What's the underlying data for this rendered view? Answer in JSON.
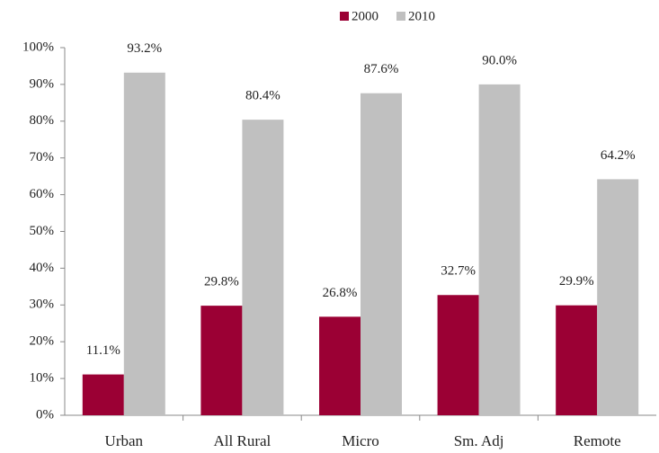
{
  "chart_data": {
    "type": "bar",
    "categories": [
      "Urban",
      "All Rural",
      "Micro",
      "Sm. Adj",
      "Remote"
    ],
    "series": [
      {
        "name": "2000",
        "color": "#9b0034",
        "values": [
          11.1,
          29.8,
          26.8,
          32.7,
          29.9
        ],
        "value_labels": [
          "11.1%",
          "29.8%",
          "26.8%",
          "32.7%",
          "29.9%"
        ]
      },
      {
        "name": "2010",
        "color": "#c0c0c0",
        "values": [
          93.2,
          80.4,
          87.6,
          90.0,
          64.2
        ],
        "value_labels": [
          "93.2%",
          "80.4%",
          "87.6%",
          "90.0%",
          "64.2%"
        ]
      }
    ],
    "ylim": [
      0,
      100
    ],
    "yticks": [
      {
        "value": 0,
        "label": "0%"
      },
      {
        "value": 10,
        "label": "10%"
      },
      {
        "value": 20,
        "label": "20%"
      },
      {
        "value": 30,
        "label": "30%"
      },
      {
        "value": 40,
        "label": "40%"
      },
      {
        "value": 50,
        "label": "50%"
      },
      {
        "value": 60,
        "label": "60%"
      },
      {
        "value": 70,
        "label": "70%"
      },
      {
        "value": 80,
        "label": "80%"
      },
      {
        "value": 90,
        "label": "90%"
      },
      {
        "value": 100,
        "label": "100%"
      }
    ],
    "grid": false,
    "legend": "top"
  }
}
